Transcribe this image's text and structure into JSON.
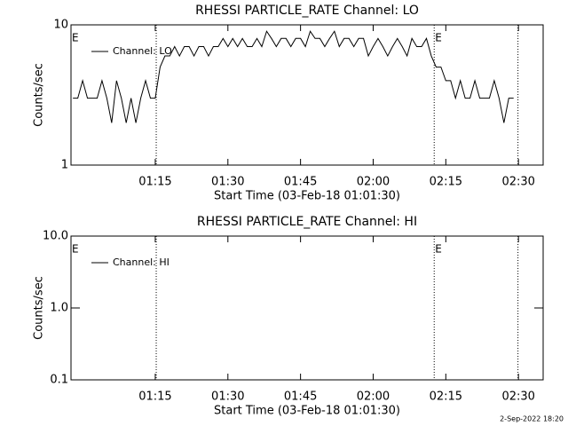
{
  "chart_data": [
    {
      "type": "line",
      "title": "RHESSI PARTICLE_RATE Channel: LO",
      "x_label": "Start Time (03-Feb-18 01:01:30)",
      "y_label": "Counts/sec",
      "ylog": true,
      "xlim": [
        57.6,
        155.1
      ],
      "xticks": [
        {
          "value": 75,
          "label": "01:15"
        },
        {
          "value": 90,
          "label": "01:30"
        },
        {
          "value": 105,
          "label": "01:45"
        },
        {
          "value": 120,
          "label": "02:00"
        },
        {
          "value": 135,
          "label": "02:15"
        },
        {
          "value": 150,
          "label": "02:30"
        }
      ],
      "ylim": [
        1,
        10
      ],
      "yticks": [
        1,
        10
      ],
      "vlines": [
        75.2,
        132.6,
        149.9
      ],
      "annotations": [
        {
          "x": 57.6,
          "label": "E"
        },
        {
          "x": 132.6,
          "label": "E"
        }
      ],
      "series": [
        {
          "name": "Channel: LO",
          "color": "#000000",
          "x": [
            58,
            59,
            60,
            61,
            62,
            63,
            64,
            65,
            66,
            67,
            68,
            69,
            70,
            71,
            72,
            73,
            74,
            75,
            76,
            77,
            78,
            79,
            80,
            81,
            82,
            83,
            84,
            85,
            86,
            87,
            88,
            89,
            90,
            91,
            92,
            93,
            94,
            95,
            96,
            97,
            98,
            99,
            100,
            101,
            102,
            103,
            104,
            105,
            106,
            107,
            108,
            109,
            110,
            111,
            112,
            113,
            114,
            115,
            116,
            117,
            118,
            119,
            120,
            121,
            122,
            123,
            124,
            125,
            126,
            127,
            128,
            129,
            130,
            131,
            132,
            133,
            134,
            135,
            136,
            137,
            138,
            139,
            140,
            141,
            142,
            143,
            144,
            145,
            146,
            147,
            148,
            149
          ],
          "values": [
            3,
            3,
            4,
            3,
            3,
            3,
            4,
            3,
            2,
            4,
            3,
            2,
            3,
            2,
            3,
            4,
            3,
            3,
            5,
            6,
            6,
            7,
            6,
            7,
            7,
            6,
            7,
            7,
            6,
            7,
            7,
            8,
            7,
            8,
            7,
            8,
            7,
            7,
            8,
            7,
            9,
            8,
            7,
            8,
            8,
            7,
            8,
            8,
            7,
            9,
            8,
            8,
            7,
            8,
            9,
            7,
            8,
            8,
            7,
            8,
            8,
            6,
            7,
            8,
            7,
            6,
            7,
            8,
            7,
            6,
            8,
            7,
            7,
            8,
            6,
            5,
            5,
            4,
            4,
            3,
            4,
            3,
            3,
            4,
            3,
            3,
            3,
            4,
            3,
            2,
            3,
            3
          ]
        }
      ]
    },
    {
      "type": "line",
      "title": "RHESSI PARTICLE_RATE Channel: HI",
      "x_label": "Start Time (03-Feb-18 01:01:30)",
      "y_label": "Counts/sec",
      "ylog": true,
      "xlim": [
        57.6,
        155.1
      ],
      "xticks": [
        {
          "value": 75,
          "label": "01:15"
        },
        {
          "value": 90,
          "label": "01:30"
        },
        {
          "value": 105,
          "label": "01:45"
        },
        {
          "value": 120,
          "label": "02:00"
        },
        {
          "value": 135,
          "label": "02:15"
        },
        {
          "value": 150,
          "label": "02:30"
        }
      ],
      "ylim": [
        0.1,
        10
      ],
      "yticks": [
        0.1,
        {
          "value": 1,
          "label": "1.0"
        },
        {
          "value": 10,
          "label": "10.0"
        }
      ],
      "vlines": [
        75.2,
        132.6,
        149.9
      ],
      "annotations": [
        {
          "x": 57.6,
          "label": "E"
        },
        {
          "x": 132.6,
          "label": "E"
        }
      ],
      "series": [
        {
          "name": "Channel: HI",
          "color": "#000000",
          "x": [],
          "values": []
        }
      ]
    }
  ],
  "footer": "2-Sep-2022 18:20"
}
